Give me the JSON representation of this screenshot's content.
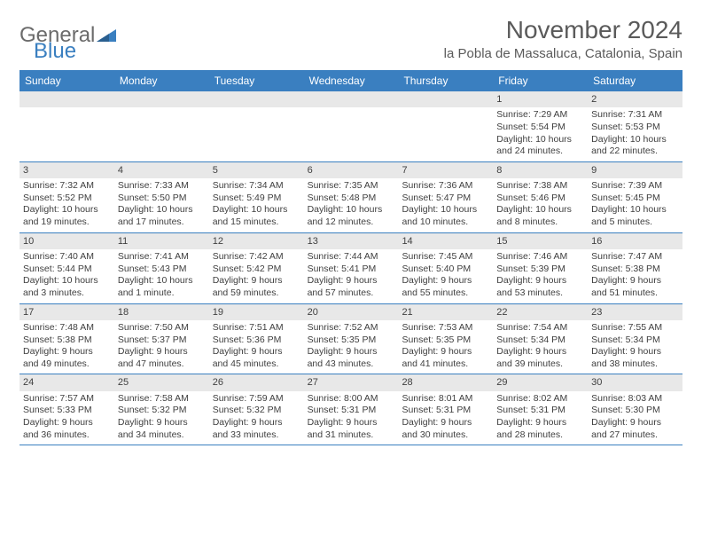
{
  "logo": {
    "text1": "General",
    "text2": "Blue"
  },
  "title": "November 2024",
  "location": "la Pobla de Massaluca, Catalonia, Spain",
  "colors": {
    "header_bg": "#3a7fc0",
    "header_text": "#ffffff",
    "body_text": "#404040",
    "title_text": "#5a5a5a",
    "daynum_bg": "#e8e8e8",
    "row_border": "#3a7fc0"
  },
  "day_names": [
    "Sunday",
    "Monday",
    "Tuesday",
    "Wednesday",
    "Thursday",
    "Friday",
    "Saturday"
  ],
  "weeks": [
    [
      {
        "n": "",
        "sr": "",
        "ss": "",
        "dl": ""
      },
      {
        "n": "",
        "sr": "",
        "ss": "",
        "dl": ""
      },
      {
        "n": "",
        "sr": "",
        "ss": "",
        "dl": ""
      },
      {
        "n": "",
        "sr": "",
        "ss": "",
        "dl": ""
      },
      {
        "n": "",
        "sr": "",
        "ss": "",
        "dl": ""
      },
      {
        "n": "1",
        "sr": "Sunrise: 7:29 AM",
        "ss": "Sunset: 5:54 PM",
        "dl": "Daylight: 10 hours and 24 minutes."
      },
      {
        "n": "2",
        "sr": "Sunrise: 7:31 AM",
        "ss": "Sunset: 5:53 PM",
        "dl": "Daylight: 10 hours and 22 minutes."
      }
    ],
    [
      {
        "n": "3",
        "sr": "Sunrise: 7:32 AM",
        "ss": "Sunset: 5:52 PM",
        "dl": "Daylight: 10 hours and 19 minutes."
      },
      {
        "n": "4",
        "sr": "Sunrise: 7:33 AM",
        "ss": "Sunset: 5:50 PM",
        "dl": "Daylight: 10 hours and 17 minutes."
      },
      {
        "n": "5",
        "sr": "Sunrise: 7:34 AM",
        "ss": "Sunset: 5:49 PM",
        "dl": "Daylight: 10 hours and 15 minutes."
      },
      {
        "n": "6",
        "sr": "Sunrise: 7:35 AM",
        "ss": "Sunset: 5:48 PM",
        "dl": "Daylight: 10 hours and 12 minutes."
      },
      {
        "n": "7",
        "sr": "Sunrise: 7:36 AM",
        "ss": "Sunset: 5:47 PM",
        "dl": "Daylight: 10 hours and 10 minutes."
      },
      {
        "n": "8",
        "sr": "Sunrise: 7:38 AM",
        "ss": "Sunset: 5:46 PM",
        "dl": "Daylight: 10 hours and 8 minutes."
      },
      {
        "n": "9",
        "sr": "Sunrise: 7:39 AM",
        "ss": "Sunset: 5:45 PM",
        "dl": "Daylight: 10 hours and 5 minutes."
      }
    ],
    [
      {
        "n": "10",
        "sr": "Sunrise: 7:40 AM",
        "ss": "Sunset: 5:44 PM",
        "dl": "Daylight: 10 hours and 3 minutes."
      },
      {
        "n": "11",
        "sr": "Sunrise: 7:41 AM",
        "ss": "Sunset: 5:43 PM",
        "dl": "Daylight: 10 hours and 1 minute."
      },
      {
        "n": "12",
        "sr": "Sunrise: 7:42 AM",
        "ss": "Sunset: 5:42 PM",
        "dl": "Daylight: 9 hours and 59 minutes."
      },
      {
        "n": "13",
        "sr": "Sunrise: 7:44 AM",
        "ss": "Sunset: 5:41 PM",
        "dl": "Daylight: 9 hours and 57 minutes."
      },
      {
        "n": "14",
        "sr": "Sunrise: 7:45 AM",
        "ss": "Sunset: 5:40 PM",
        "dl": "Daylight: 9 hours and 55 minutes."
      },
      {
        "n": "15",
        "sr": "Sunrise: 7:46 AM",
        "ss": "Sunset: 5:39 PM",
        "dl": "Daylight: 9 hours and 53 minutes."
      },
      {
        "n": "16",
        "sr": "Sunrise: 7:47 AM",
        "ss": "Sunset: 5:38 PM",
        "dl": "Daylight: 9 hours and 51 minutes."
      }
    ],
    [
      {
        "n": "17",
        "sr": "Sunrise: 7:48 AM",
        "ss": "Sunset: 5:38 PM",
        "dl": "Daylight: 9 hours and 49 minutes."
      },
      {
        "n": "18",
        "sr": "Sunrise: 7:50 AM",
        "ss": "Sunset: 5:37 PM",
        "dl": "Daylight: 9 hours and 47 minutes."
      },
      {
        "n": "19",
        "sr": "Sunrise: 7:51 AM",
        "ss": "Sunset: 5:36 PM",
        "dl": "Daylight: 9 hours and 45 minutes."
      },
      {
        "n": "20",
        "sr": "Sunrise: 7:52 AM",
        "ss": "Sunset: 5:35 PM",
        "dl": "Daylight: 9 hours and 43 minutes."
      },
      {
        "n": "21",
        "sr": "Sunrise: 7:53 AM",
        "ss": "Sunset: 5:35 PM",
        "dl": "Daylight: 9 hours and 41 minutes."
      },
      {
        "n": "22",
        "sr": "Sunrise: 7:54 AM",
        "ss": "Sunset: 5:34 PM",
        "dl": "Daylight: 9 hours and 39 minutes."
      },
      {
        "n": "23",
        "sr": "Sunrise: 7:55 AM",
        "ss": "Sunset: 5:34 PM",
        "dl": "Daylight: 9 hours and 38 minutes."
      }
    ],
    [
      {
        "n": "24",
        "sr": "Sunrise: 7:57 AM",
        "ss": "Sunset: 5:33 PM",
        "dl": "Daylight: 9 hours and 36 minutes."
      },
      {
        "n": "25",
        "sr": "Sunrise: 7:58 AM",
        "ss": "Sunset: 5:32 PM",
        "dl": "Daylight: 9 hours and 34 minutes."
      },
      {
        "n": "26",
        "sr": "Sunrise: 7:59 AM",
        "ss": "Sunset: 5:32 PM",
        "dl": "Daylight: 9 hours and 33 minutes."
      },
      {
        "n": "27",
        "sr": "Sunrise: 8:00 AM",
        "ss": "Sunset: 5:31 PM",
        "dl": "Daylight: 9 hours and 31 minutes."
      },
      {
        "n": "28",
        "sr": "Sunrise: 8:01 AM",
        "ss": "Sunset: 5:31 PM",
        "dl": "Daylight: 9 hours and 30 minutes."
      },
      {
        "n": "29",
        "sr": "Sunrise: 8:02 AM",
        "ss": "Sunset: 5:31 PM",
        "dl": "Daylight: 9 hours and 28 minutes."
      },
      {
        "n": "30",
        "sr": "Sunrise: 8:03 AM",
        "ss": "Sunset: 5:30 PM",
        "dl": "Daylight: 9 hours and 27 minutes."
      }
    ]
  ]
}
